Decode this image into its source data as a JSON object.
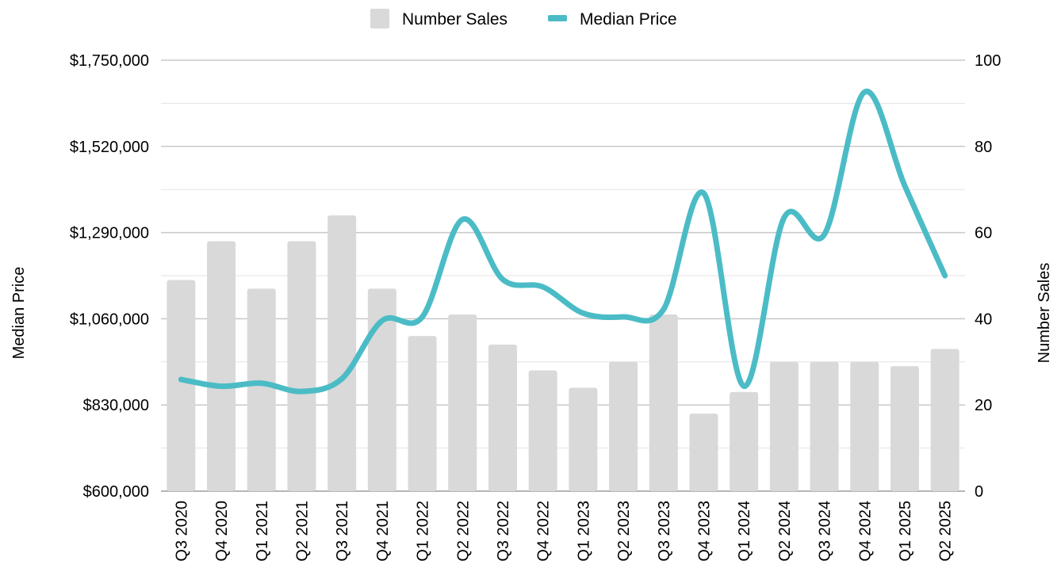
{
  "chart_data": {
    "type": "bar",
    "title": "",
    "legend": {
      "placement": "top-center",
      "items": [
        {
          "label": "Number Sales",
          "kind": "bar"
        },
        {
          "label": "Median Price",
          "kind": "line"
        }
      ]
    },
    "categories": [
      "Q3 2020",
      "Q4 2020",
      "Q1 2021",
      "Q2 2021",
      "Q3 2021",
      "Q4 2021",
      "Q1 2022",
      "Q2 2022",
      "Q3 2022",
      "Q4 2022",
      "Q1 2023",
      "Q2 2023",
      "Q3 2023",
      "Q4 2023",
      "Q1 2024",
      "Q2 2024",
      "Q3 2024",
      "Q4 2024",
      "Q1 2025",
      "Q2 2025"
    ],
    "series": [
      {
        "name": "Number Sales",
        "type": "bar",
        "axis": "right",
        "color": "#d9d9d9",
        "values": [
          49,
          58,
          47,
          58,
          64,
          47,
          36,
          41,
          34,
          28,
          24,
          30,
          41,
          18,
          23,
          30,
          30,
          30,
          29,
          33
        ]
      },
      {
        "name": "Median Price",
        "type": "line",
        "axis": "left",
        "color": "#4bbcc6",
        "values": [
          898000,
          880000,
          888000,
          866000,
          900000,
          1055000,
          1065000,
          1325000,
          1165000,
          1145000,
          1075000,
          1065000,
          1085000,
          1395000,
          880000,
          1330000,
          1285000,
          1665000,
          1415000,
          1175000
        ]
      }
    ],
    "y_left": {
      "label": "Median Price",
      "ylim": [
        600000,
        1750000
      ],
      "ticks": [
        600000,
        830000,
        1060000,
        1290000,
        1520000,
        1750000
      ],
      "tick_labels": [
        "$600,000",
        "$830,000",
        "$1,060,000",
        "$1,290,000",
        "$1,520,000",
        "$1,750,000"
      ]
    },
    "y_right": {
      "label": "Number Sales",
      "ylim": [
        0,
        100
      ],
      "ticks": [
        0,
        20,
        40,
        60,
        80,
        100
      ],
      "tick_labels": [
        "0",
        "20",
        "40",
        "60",
        "80",
        "100"
      ]
    },
    "grid": true
  }
}
